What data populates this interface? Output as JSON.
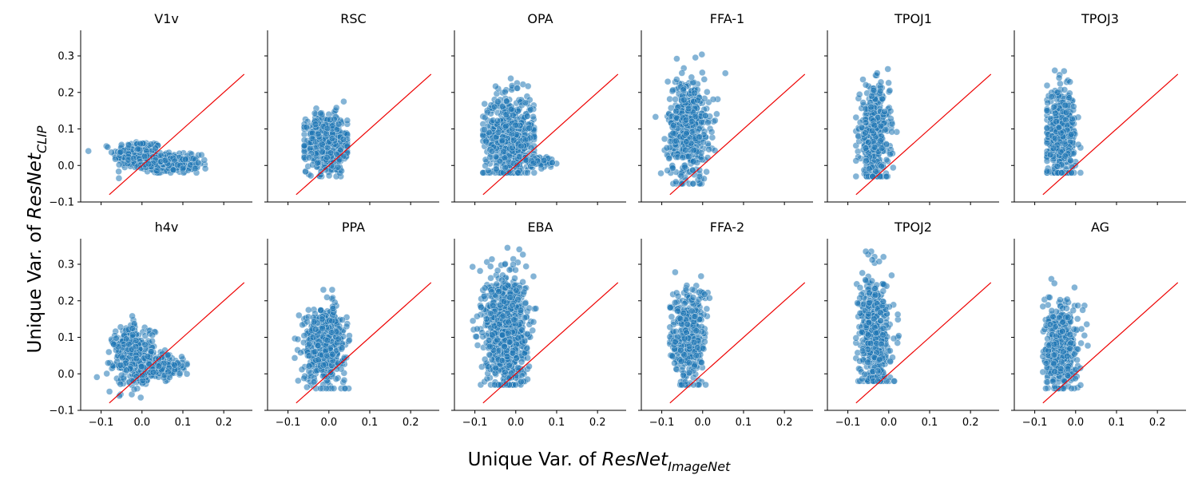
{
  "figure": {
    "xlabel_prefix": "Unique Var. of ",
    "xlabel_model": "ResNet",
    "xlabel_sub": "ImageNet",
    "ylabel_prefix": "Unique Var. of ",
    "ylabel_model": "ResNet",
    "ylabel_sub": "CLIP"
  },
  "chart_data": {
    "type": "scatter",
    "layout": "2 rows x 6 columns of small-multiple scatter panels, shared axes",
    "xlim": [
      -0.15,
      0.27
    ],
    "ylim": [
      -0.1,
      0.37
    ],
    "xticks": [
      -0.1,
      0.0,
      0.1,
      0.2
    ],
    "yticks": [
      -0.1,
      0.0,
      0.1,
      0.2,
      0.3
    ],
    "xtick_labels": [
      "−0.1",
      "0.0",
      "0.1",
      "0.2"
    ],
    "ytick_labels": [
      "−0.1",
      "0.0",
      "0.1",
      "0.2",
      "0.3"
    ],
    "reference_line": {
      "x": [
        -0.08,
        0.25
      ],
      "y": [
        -0.08,
        0.25
      ],
      "color": "#ee0000",
      "label": "y = x"
    },
    "point_color": "#1f77b4",
    "point_edge_color": "#ffffff",
    "point_opacity": 0.55,
    "grid": false,
    "legend": "none",
    "panels": [
      {
        "title": "V1v",
        "row": 0,
        "col": 0,
        "clusters": [
          {
            "n": 220,
            "cx": -0.01,
            "sx": 0.03,
            "cy": 0.03,
            "sy": 0.02,
            "ymin": -0.035,
            "ymax": 0.095
          },
          {
            "n": 320,
            "cx": 0.07,
            "sx": 0.035,
            "cy": 0.005,
            "sy": 0.012,
            "xmax": 0.155,
            "ymin": -0.02,
            "ymax": 0.06
          }
        ]
      },
      {
        "title": "RSC",
        "row": 0,
        "col": 1,
        "clusters": [
          {
            "n": 600,
            "cx": -0.005,
            "sx": 0.025,
            "cy": 0.06,
            "sy": 0.04,
            "xmin": -0.06,
            "xmax": 0.045,
            "ymin": -0.03,
            "ymax": 0.175
          }
        ]
      },
      {
        "title": "OPA",
        "row": 0,
        "col": 2,
        "clusters": [
          {
            "n": 650,
            "cx": -0.015,
            "sx": 0.03,
            "cy": 0.08,
            "sy": 0.055,
            "xmin": -0.08,
            "xmax": 0.045,
            "ymin": -0.02,
            "ymax": 0.24
          },
          {
            "n": 60,
            "cx": 0.06,
            "sx": 0.018,
            "cy": 0.01,
            "sy": 0.008,
            "xmax": 0.1
          }
        ]
      },
      {
        "title": "FFA-1",
        "row": 0,
        "col": 3,
        "clusters": [
          {
            "n": 550,
            "cx": -0.035,
            "sx": 0.025,
            "cy": 0.1,
            "sy": 0.07,
            "xmin": -0.13,
            "xmax": 0.06,
            "ymin": -0.05,
            "ymax": 0.325
          }
        ]
      },
      {
        "title": "TPOJ1",
        "row": 0,
        "col": 4,
        "clusters": [
          {
            "n": 500,
            "cx": -0.035,
            "sx": 0.018,
            "cy": 0.08,
            "sy": 0.065,
            "xmin": -0.08,
            "xmax": 0.03,
            "ymin": -0.03,
            "ymax": 0.32
          }
        ]
      },
      {
        "title": "TPOJ3",
        "row": 0,
        "col": 5,
        "clusters": [
          {
            "n": 500,
            "cx": -0.035,
            "sx": 0.018,
            "cy": 0.08,
            "sy": 0.06,
            "xmin": -0.07,
            "xmax": 0.03,
            "ymin": -0.02,
            "ymax": 0.27
          }
        ]
      },
      {
        "title": "h4v",
        "row": 1,
        "col": 0,
        "clusters": [
          {
            "n": 420,
            "cx": -0.02,
            "sx": 0.025,
            "cy": 0.05,
            "sy": 0.04,
            "ymin": -0.065,
            "ymax": 0.28
          },
          {
            "n": 250,
            "cx": 0.04,
            "sx": 0.03,
            "cy": 0.02,
            "sy": 0.015,
            "xmax": 0.11,
            "ymin": -0.02,
            "ymax": 0.09
          }
        ]
      },
      {
        "title": "PPA",
        "row": 1,
        "col": 1,
        "clusters": [
          {
            "n": 600,
            "cx": -0.01,
            "sx": 0.025,
            "cy": 0.08,
            "sy": 0.05,
            "xmin": -0.09,
            "xmax": 0.05,
            "ymin": -0.04,
            "ymax": 0.23
          }
        ]
      },
      {
        "title": "EBA",
        "row": 1,
        "col": 2,
        "clusters": [
          {
            "n": 900,
            "cx": -0.025,
            "sx": 0.025,
            "cy": 0.12,
            "sy": 0.08,
            "xmin": -0.12,
            "xmax": 0.06,
            "ymin": -0.03,
            "ymax": 0.345
          }
        ]
      },
      {
        "title": "FFA-2",
        "row": 1,
        "col": 3,
        "clusters": [
          {
            "n": 400,
            "cx": -0.035,
            "sx": 0.022,
            "cy": 0.1,
            "sy": 0.07,
            "xmin": -0.08,
            "xmax": 0.04,
            "ymin": -0.03,
            "ymax": 0.29
          }
        ]
      },
      {
        "title": "TPOJ2",
        "row": 1,
        "col": 4,
        "clusters": [
          {
            "n": 550,
            "cx": -0.035,
            "sx": 0.018,
            "cy": 0.11,
            "sy": 0.075,
            "xmin": -0.08,
            "xmax": 0.03,
            "ymin": -0.02,
            "ymax": 0.335
          }
        ]
      },
      {
        "title": "AG",
        "row": 1,
        "col": 5,
        "clusters": [
          {
            "n": 450,
            "cx": -0.035,
            "sx": 0.02,
            "cy": 0.07,
            "sy": 0.06,
            "xmin": -0.08,
            "xmax": 0.03,
            "ymin": -0.04,
            "ymax": 0.27
          }
        ]
      }
    ]
  }
}
